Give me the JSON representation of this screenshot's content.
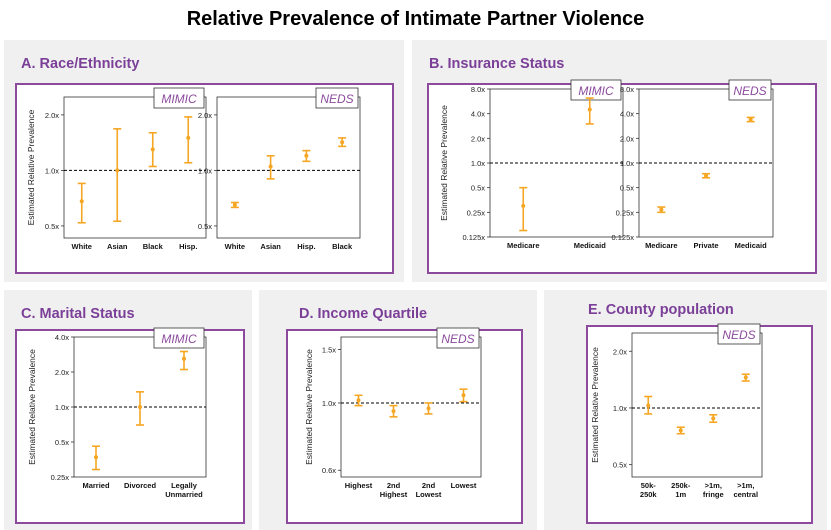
{
  "title": "Relative Prevalence of Intimate Partner Violence",
  "colors": {
    "marker": "#f5a623",
    "accent": "#8b4a9c",
    "reference": "#000000"
  },
  "sections": [
    {
      "id": "A",
      "title": "A. Race/Ethnicity"
    },
    {
      "id": "B",
      "title": "B. Insurance Status"
    },
    {
      "id": "C",
      "title": "C. Marital Status"
    },
    {
      "id": "D",
      "title": "D. Income Quartile"
    },
    {
      "id": "E",
      "title": "E. County population"
    }
  ],
  "chart_data": [
    {
      "type": "scatter",
      "section": "A",
      "dataset": "MIMIC",
      "ylabel": "Estimated Relative Prevalence",
      "yscale": "log",
      "ylim": [
        0.43,
        2.5
      ],
      "yticks": [
        0.5,
        1.0,
        2.0
      ],
      "ytick_labels": [
        "0.5x",
        "1.0x",
        "2.0x"
      ],
      "reference": 1.0,
      "categories": [
        "White",
        "Asian",
        "Black",
        "Hisp."
      ],
      "values": [
        0.68,
        1.0,
        1.3,
        1.5
      ],
      "lower": [
        0.52,
        0.53,
        1.05,
        1.1
      ],
      "upper": [
        0.85,
        1.68,
        1.6,
        1.95
      ]
    },
    {
      "type": "scatter",
      "section": "A",
      "dataset": "NEDS",
      "ylabel": "",
      "yscale": "log",
      "ylim": [
        0.43,
        2.5
      ],
      "yticks": [
        0.5,
        1.0,
        2.0
      ],
      "ytick_labels": [
        "0.5x",
        "1.0x",
        "2.0x"
      ],
      "reference": 1.0,
      "categories": [
        "White",
        "Asian",
        "Hisp.",
        "Black"
      ],
      "values": [
        0.65,
        1.05,
        1.2,
        1.42
      ],
      "lower": [
        0.63,
        0.9,
        1.12,
        1.35
      ],
      "upper": [
        0.67,
        1.2,
        1.28,
        1.5
      ]
    },
    {
      "type": "scatter",
      "section": "B",
      "dataset": "MIMIC",
      "ylabel": "Estimated Relative Prevalence",
      "yscale": "log",
      "ylim": [
        0.125,
        8.0
      ],
      "yticks": [
        0.125,
        0.25,
        0.5,
        1.0,
        2.0,
        4.0,
        8.0
      ],
      "ytick_labels": [
        "0.125x",
        "0.25x",
        "0.5x",
        "1.0x",
        "2.0x",
        "4.0x",
        "8.0x"
      ],
      "reference": 1.0,
      "categories": [
        "Medicare",
        "Medicaid"
      ],
      "values": [
        0.3,
        4.5
      ],
      "lower": [
        0.15,
        3.0
      ],
      "upper": [
        0.5,
        6.2
      ]
    },
    {
      "type": "scatter",
      "section": "B",
      "dataset": "NEDS",
      "ylabel": "",
      "yscale": "log",
      "ylim": [
        0.125,
        8.0
      ],
      "yticks": [
        0.125,
        0.25,
        0.5,
        1.0,
        2.0,
        4.0,
        8.0
      ],
      "ytick_labels": [
        "0.125x",
        "0.25x",
        "0.5x",
        "1.0x",
        "2.0x",
        "4.0x",
        "8.0x"
      ],
      "reference": 1.0,
      "categories": [
        "Medicare",
        "Private",
        "Medicaid"
      ],
      "values": [
        0.27,
        0.7,
        3.4
      ],
      "lower": [
        0.25,
        0.66,
        3.2
      ],
      "upper": [
        0.29,
        0.74,
        3.6
      ]
    },
    {
      "type": "scatter",
      "section": "C",
      "dataset": "MIMIC",
      "ylabel": "Estimated Relative Prevalence",
      "yscale": "log",
      "ylim": [
        0.25,
        4.0
      ],
      "yticks": [
        0.25,
        0.5,
        1.0,
        2.0,
        4.0
      ],
      "ytick_labels": [
        "0.25x",
        "0.5x",
        "1.0x",
        "2.0x",
        "4.0x"
      ],
      "reference": 1.0,
      "categories": [
        "Married",
        "Divorced",
        "Legally\nUnmarried"
      ],
      "values": [
        0.37,
        1.0,
        2.6
      ],
      "lower": [
        0.29,
        0.7,
        2.1
      ],
      "upper": [
        0.46,
        1.35,
        3.0
      ]
    },
    {
      "type": "scatter",
      "section": "D",
      "dataset": "NEDS",
      "ylabel": "Estimated Relative Prevalence",
      "yscale": "log",
      "ylim": [
        0.57,
        1.65
      ],
      "yticks": [
        0.6,
        1.0,
        1.5
      ],
      "ytick_labels": [
        "0.6x",
        "1.0x",
        "1.5x"
      ],
      "reference": 1.0,
      "categories": [
        "Highest",
        "2nd\nHighest",
        "2nd\nLowest",
        "Lowest"
      ],
      "values": [
        1.02,
        0.94,
        0.96,
        1.06
      ],
      "lower": [
        0.98,
        0.9,
        0.92,
        1.01
      ],
      "upper": [
        1.06,
        0.98,
        1.0,
        1.11
      ]
    },
    {
      "type": "scatter",
      "section": "E",
      "dataset": "NEDS",
      "ylabel": "Estimated Relative Prevalence",
      "yscale": "log",
      "ylim": [
        0.43,
        2.5
      ],
      "yticks": [
        0.5,
        1.0,
        2.0
      ],
      "ytick_labels": [
        "0.5x",
        "1.0x",
        "2.0x"
      ],
      "reference": 1.0,
      "categories": [
        "50k-\n250k",
        "250k-\n1m",
        ">1m,\nfringe",
        ">1m,\ncentral"
      ],
      "values": [
        1.03,
        0.76,
        0.88,
        1.45
      ],
      "lower": [
        0.93,
        0.73,
        0.84,
        1.39
      ],
      "upper": [
        1.15,
        0.79,
        0.92,
        1.51
      ]
    }
  ]
}
